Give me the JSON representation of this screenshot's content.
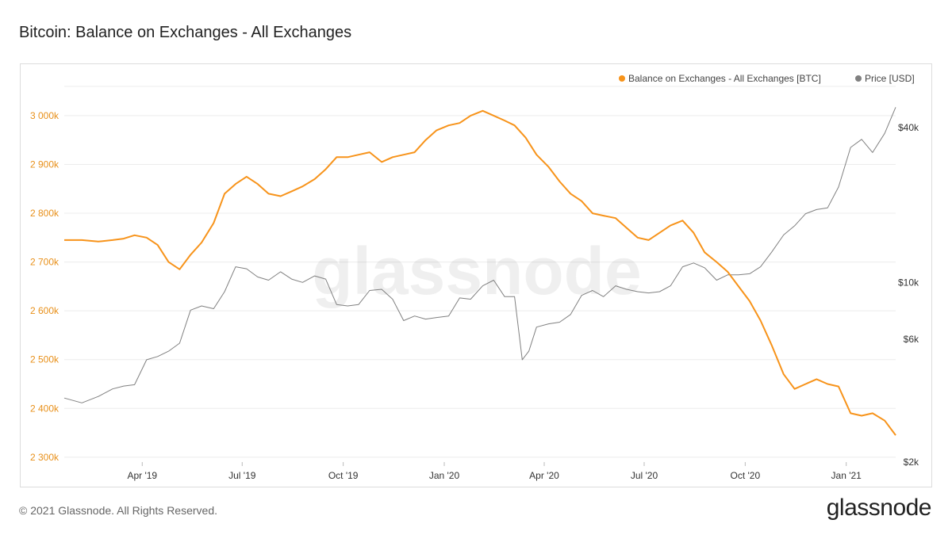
{
  "header": {
    "title": "Bitcoin: Balance on Exchanges - All Exchanges"
  },
  "footer": {
    "copyright": "© 2021 Glassnode. All Rights Reserved.",
    "brand": "glassnode"
  },
  "watermark": "glassnode",
  "chart_data": {
    "type": "line",
    "grid": true,
    "legend_position": "top-right",
    "x_ticks": [
      "Apr '19",
      "Jul '19",
      "Oct '19",
      "Jan '20",
      "Apr '20",
      "Jul '20",
      "Oct '20",
      "Jan '21"
    ],
    "y_left": {
      "ticks": [
        "2 300k",
        "2 400k",
        "2 500k",
        "2 600k",
        "2 700k",
        "2 800k",
        "2 900k",
        "3 000k"
      ],
      "range": [
        2290000,
        3060000
      ]
    },
    "y_right": {
      "scale": "log",
      "ticks": [
        "$2k",
        "$6k",
        "$10k",
        "$40k"
      ]
    },
    "series": [
      {
        "name": "Balance on Exchanges - All Exchanges [BTC]",
        "color": "#f7931a",
        "axis": "left",
        "x": [
          "2019-01-20",
          "2019-02-05",
          "2019-02-20",
          "2019-03-05",
          "2019-03-15",
          "2019-03-25",
          "2019-04-05",
          "2019-04-15",
          "2019-04-25",
          "2019-05-05",
          "2019-05-15",
          "2019-05-25",
          "2019-06-05",
          "2019-06-15",
          "2019-06-25",
          "2019-07-05",
          "2019-07-15",
          "2019-07-25",
          "2019-08-05",
          "2019-08-15",
          "2019-08-25",
          "2019-09-05",
          "2019-09-15",
          "2019-09-25",
          "2019-10-05",
          "2019-10-15",
          "2019-10-25",
          "2019-11-05",
          "2019-11-15",
          "2019-11-25",
          "2019-12-05",
          "2019-12-15",
          "2019-12-25",
          "2020-01-05",
          "2020-01-15",
          "2020-01-25",
          "2020-02-05",
          "2020-02-15",
          "2020-02-25",
          "2020-03-05",
          "2020-03-15",
          "2020-03-25",
          "2020-04-05",
          "2020-04-15",
          "2020-04-25",
          "2020-05-05",
          "2020-05-15",
          "2020-05-25",
          "2020-06-05",
          "2020-06-15",
          "2020-06-25",
          "2020-07-05",
          "2020-07-15",
          "2020-07-25",
          "2020-08-05",
          "2020-08-15",
          "2020-08-25",
          "2020-09-05",
          "2020-09-15",
          "2020-09-25",
          "2020-10-05",
          "2020-10-15",
          "2020-10-25",
          "2020-11-05",
          "2020-11-15",
          "2020-11-25",
          "2020-12-05",
          "2020-12-15",
          "2020-12-25",
          "2021-01-05",
          "2021-01-15",
          "2021-01-25",
          "2021-02-05",
          "2021-02-15"
        ],
        "values": [
          2745000,
          2745000,
          2742000,
          2745000,
          2748000,
          2755000,
          2750000,
          2735000,
          2700000,
          2685000,
          2715000,
          2740000,
          2780000,
          2840000,
          2860000,
          2875000,
          2860000,
          2840000,
          2835000,
          2845000,
          2855000,
          2870000,
          2890000,
          2915000,
          2915000,
          2920000,
          2925000,
          2905000,
          2915000,
          2920000,
          2925000,
          2950000,
          2970000,
          2980000,
          2985000,
          3000000,
          3010000,
          3000000,
          2990000,
          2980000,
          2955000,
          2920000,
          2895000,
          2865000,
          2840000,
          2825000,
          2800000,
          2795000,
          2790000,
          2770000,
          2750000,
          2745000,
          2760000,
          2775000,
          2785000,
          2760000,
          2720000,
          2700000,
          2680000,
          2650000,
          2620000,
          2580000,
          2530000,
          2470000,
          2440000,
          2450000,
          2460000,
          2450000,
          2445000,
          2390000,
          2385000,
          2390000,
          2375000,
          2345000
        ]
      },
      {
        "name": "Price [USD]",
        "color": "#808080",
        "axis": "right",
        "x": [
          "2019-01-20",
          "2019-02-05",
          "2019-02-20",
          "2019-03-05",
          "2019-03-15",
          "2019-03-25",
          "2019-04-05",
          "2019-04-15",
          "2019-04-25",
          "2019-05-05",
          "2019-05-15",
          "2019-05-25",
          "2019-06-05",
          "2019-06-15",
          "2019-06-25",
          "2019-07-05",
          "2019-07-15",
          "2019-07-25",
          "2019-08-05",
          "2019-08-15",
          "2019-08-25",
          "2019-09-05",
          "2019-09-15",
          "2019-09-25",
          "2019-10-05",
          "2019-10-15",
          "2019-10-25",
          "2019-11-05",
          "2019-11-15",
          "2019-11-25",
          "2019-12-05",
          "2019-12-15",
          "2019-12-25",
          "2020-01-05",
          "2020-01-15",
          "2020-01-25",
          "2020-02-05",
          "2020-02-15",
          "2020-02-25",
          "2020-03-05",
          "2020-03-12",
          "2020-03-18",
          "2020-03-25",
          "2020-04-05",
          "2020-04-15",
          "2020-04-25",
          "2020-05-05",
          "2020-05-15",
          "2020-05-25",
          "2020-06-05",
          "2020-06-15",
          "2020-06-25",
          "2020-07-05",
          "2020-07-15",
          "2020-07-25",
          "2020-08-05",
          "2020-08-15",
          "2020-08-25",
          "2020-09-05",
          "2020-09-15",
          "2020-09-25",
          "2020-10-05",
          "2020-10-15",
          "2020-10-25",
          "2020-11-05",
          "2020-11-15",
          "2020-11-25",
          "2020-12-05",
          "2020-12-15",
          "2020-12-25",
          "2021-01-05",
          "2021-01-15",
          "2021-01-25",
          "2021-02-05",
          "2021-02-15"
        ],
        "values": [
          3550,
          3400,
          3600,
          3850,
          3950,
          4000,
          5000,
          5150,
          5400,
          5800,
          7800,
          8100,
          7900,
          9200,
          11500,
          11300,
          10500,
          10200,
          11000,
          10300,
          10000,
          10600,
          10300,
          8200,
          8100,
          8200,
          9300,
          9400,
          8600,
          7100,
          7400,
          7200,
          7300,
          7400,
          8700,
          8600,
          9700,
          10200,
          8800,
          8800,
          5000,
          5400,
          6700,
          6900,
          7000,
          7500,
          8900,
          9300,
          8800,
          9700,
          9400,
          9200,
          9100,
          9200,
          9700,
          11500,
          11900,
          11400,
          10200,
          10700,
          10700,
          10800,
          11500,
          13100,
          15300,
          16600,
          18500,
          19200,
          19500,
          23500,
          33500,
          36000,
          32000,
          38000,
          48000
        ]
      }
    ]
  }
}
